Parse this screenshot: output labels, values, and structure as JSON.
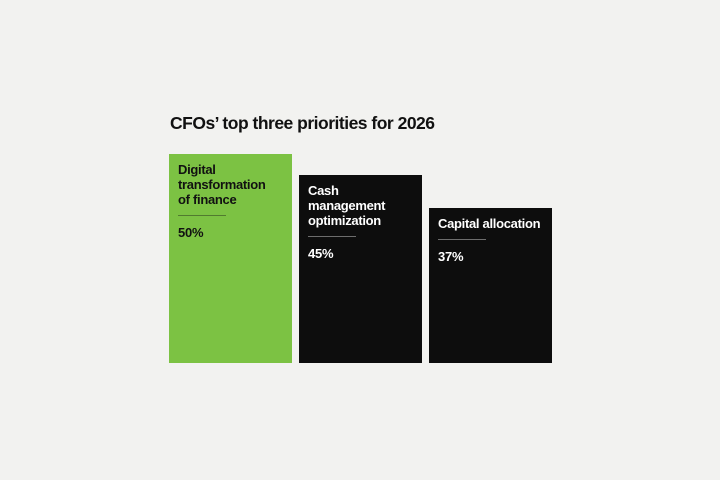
{
  "page": {
    "background_color": "#f2f2f0"
  },
  "header": {
    "title": "CFOs’ top three priorities for 2026"
  },
  "chart_data": {
    "type": "bar",
    "orientation": "vertical",
    "title": "CFOs’ top three priorities for 2026",
    "categories": [
      "Digital transformation of finance",
      "Cash management optimization",
      "Capital allocation"
    ],
    "values": [
      50,
      45,
      37
    ],
    "value_labels": [
      "50%",
      "45%",
      "37%"
    ],
    "bar_labels_wrapped": [
      "Digital\ntransformation\nof finance",
      "Cash management\noptimization",
      "Capital allocation"
    ],
    "bar_colors": [
      "#7cc243",
      "#0d0d0d",
      "#0d0d0d"
    ],
    "bar_text_colors": [
      "#111111",
      "#ffffff",
      "#ffffff"
    ],
    "ylim": [
      0,
      50
    ],
    "xlabel": "",
    "ylabel": "",
    "grid": false,
    "legend": "none",
    "axes_shown": false
  }
}
